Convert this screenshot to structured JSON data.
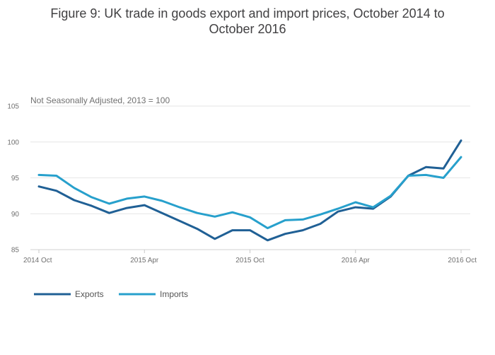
{
  "chart_data": {
    "type": "line",
    "title": "Figure 9: UK trade in goods export and import prices, October 2014 to October 2016",
    "subtitle": "Not Seasonally Adjusted, 2013 = 100",
    "xlabel": "",
    "ylabel": "",
    "ylim": [
      85,
      105
    ],
    "yticks": [
      85,
      90,
      95,
      100,
      105
    ],
    "xticks": [
      {
        "index": 0,
        "label": "2014 Oct"
      },
      {
        "index": 6,
        "label": "2015 Apr"
      },
      {
        "index": 12,
        "label": "2015 Oct"
      },
      {
        "index": 18,
        "label": "2016 Apr"
      },
      {
        "index": 24,
        "label": "2016 Oct"
      }
    ],
    "grid": true,
    "legend": "bottom-left",
    "x": [
      "2014 Oct",
      "2014 Nov",
      "2014 Dec",
      "2015 Jan",
      "2015 Feb",
      "2015 Mar",
      "2015 Apr",
      "2015 May",
      "2015 Jun",
      "2015 Jul",
      "2015 Aug",
      "2015 Sep",
      "2015 Oct",
      "2015 Nov",
      "2015 Dec",
      "2016 Jan",
      "2016 Feb",
      "2016 Mar",
      "2016 Apr",
      "2016 May",
      "2016 Jun",
      "2016 Jul",
      "2016 Aug",
      "2016 Sep",
      "2016 Oct"
    ],
    "series": [
      {
        "name": "Exports",
        "color": "#206095",
        "values": [
          93.8,
          93.2,
          91.9,
          91.1,
          90.1,
          90.8,
          91.2,
          90.1,
          89.0,
          87.9,
          86.5,
          87.7,
          87.7,
          86.3,
          87.2,
          87.7,
          88.6,
          90.3,
          90.9,
          90.7,
          92.4,
          95.3,
          96.5,
          96.3,
          100.2
        ]
      },
      {
        "name": "Imports",
        "color": "#27a0cc",
        "values": [
          95.4,
          95.3,
          93.6,
          92.3,
          91.4,
          92.1,
          92.4,
          91.8,
          90.9,
          90.1,
          89.6,
          90.2,
          89.5,
          88.0,
          89.1,
          89.2,
          89.9,
          90.7,
          91.6,
          90.9,
          92.5,
          95.3,
          95.4,
          95.0,
          97.9
        ]
      }
    ]
  }
}
